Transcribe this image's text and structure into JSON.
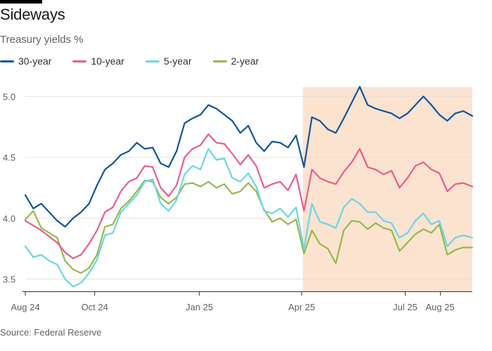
{
  "title": "Sideways",
  "subtitle": "Treasury yields %",
  "source": "Source: Federal Reserve",
  "colors": {
    "30-year": "#0f5499",
    "10-year": "#e95d8c",
    "5-year": "#6ad6e2",
    "2-year": "#96b84a",
    "shade": "#fbe3d0",
    "grid": "#e6e0da",
    "axis": "#33302e"
  },
  "chart_data": {
    "type": "line",
    "title": "Sideways",
    "subtitle": "Treasury yields %",
    "x_range": [
      "2024-08-01",
      "2025-08-29"
    ],
    "ylim": [
      3.4,
      5.1
    ],
    "y_ticks": [
      3.5,
      4.0,
      4.5,
      5.0
    ],
    "y_tick_labels": [
      "3.5",
      "4.0",
      "4.5",
      "5.0"
    ],
    "x_ticks": [
      {
        "date": "2024-08-01",
        "label": "Aug 24"
      },
      {
        "date": "2024-10-01",
        "label": "Oct 24"
      },
      {
        "date": "2025-01-01",
        "label": "Jan 25"
      },
      {
        "date": "2025-04-01",
        "label": "Apr 25"
      },
      {
        "date": "2025-07-01",
        "label": "Jul 25"
      },
      {
        "date": "2025-08-01",
        "label": "Aug 25"
      }
    ],
    "shaded_period": [
      "2025-04-02",
      "2025-08-29"
    ],
    "grid": "horizontal",
    "legend_position": "top-left",
    "series": [
      {
        "name": "30-year",
        "color": "#0f5499",
        "points": [
          [
            "2024-08-01",
            4.19
          ],
          [
            "2024-08-08",
            4.08
          ],
          [
            "2024-08-15",
            4.12
          ],
          [
            "2024-08-22",
            4.05
          ],
          [
            "2024-08-29",
            3.98
          ],
          [
            "2024-09-05",
            3.93
          ],
          [
            "2024-09-12",
            4.0
          ],
          [
            "2024-09-19",
            4.05
          ],
          [
            "2024-09-26",
            4.12
          ],
          [
            "2024-10-03",
            4.27
          ],
          [
            "2024-10-10",
            4.4
          ],
          [
            "2024-10-17",
            4.45
          ],
          [
            "2024-10-24",
            4.52
          ],
          [
            "2024-10-31",
            4.55
          ],
          [
            "2024-11-07",
            4.62
          ],
          [
            "2024-11-14",
            4.57
          ],
          [
            "2024-11-21",
            4.58
          ],
          [
            "2024-11-28",
            4.45
          ],
          [
            "2024-12-05",
            4.42
          ],
          [
            "2024-12-12",
            4.55
          ],
          [
            "2024-12-19",
            4.78
          ],
          [
            "2024-12-26",
            4.82
          ],
          [
            "2025-01-02",
            4.85
          ],
          [
            "2025-01-09",
            4.93
          ],
          [
            "2025-01-16",
            4.9
          ],
          [
            "2025-01-23",
            4.85
          ],
          [
            "2025-01-30",
            4.8
          ],
          [
            "2025-02-06",
            4.7
          ],
          [
            "2025-02-13",
            4.76
          ],
          [
            "2025-02-20",
            4.62
          ],
          [
            "2025-02-27",
            4.55
          ],
          [
            "2025-03-06",
            4.63
          ],
          [
            "2025-03-13",
            4.62
          ],
          [
            "2025-03-20",
            4.58
          ],
          [
            "2025-03-27",
            4.68
          ],
          [
            "2025-04-03",
            4.42
          ],
          [
            "2025-04-10",
            4.83
          ],
          [
            "2025-04-17",
            4.8
          ],
          [
            "2025-04-24",
            4.73
          ],
          [
            "2025-05-01",
            4.7
          ],
          [
            "2025-05-08",
            4.82
          ],
          [
            "2025-05-15",
            4.95
          ],
          [
            "2025-05-22",
            5.08
          ],
          [
            "2025-05-29",
            4.93
          ],
          [
            "2025-06-05",
            4.9
          ],
          [
            "2025-06-12",
            4.88
          ],
          [
            "2025-06-19",
            4.86
          ],
          [
            "2025-06-26",
            4.82
          ],
          [
            "2025-07-03",
            4.86
          ],
          [
            "2025-07-10",
            4.93
          ],
          [
            "2025-07-17",
            5.0
          ],
          [
            "2025-07-24",
            4.93
          ],
          [
            "2025-07-31",
            4.85
          ],
          [
            "2025-08-07",
            4.8
          ],
          [
            "2025-08-14",
            4.86
          ],
          [
            "2025-08-21",
            4.88
          ],
          [
            "2025-08-29",
            4.84
          ]
        ]
      },
      {
        "name": "10-year",
        "color": "#e95d8c",
        "points": [
          [
            "2024-08-01",
            3.98
          ],
          [
            "2024-08-08",
            3.94
          ],
          [
            "2024-08-15",
            3.9
          ],
          [
            "2024-08-22",
            3.85
          ],
          [
            "2024-08-29",
            3.8
          ],
          [
            "2024-09-05",
            3.72
          ],
          [
            "2024-09-12",
            3.67
          ],
          [
            "2024-09-19",
            3.7
          ],
          [
            "2024-09-26",
            3.79
          ],
          [
            "2024-10-03",
            3.9
          ],
          [
            "2024-10-10",
            4.05
          ],
          [
            "2024-10-17",
            4.09
          ],
          [
            "2024-10-24",
            4.22
          ],
          [
            "2024-10-31",
            4.3
          ],
          [
            "2024-11-07",
            4.33
          ],
          [
            "2024-11-14",
            4.43
          ],
          [
            "2024-11-21",
            4.42
          ],
          [
            "2024-11-28",
            4.25
          ],
          [
            "2024-12-05",
            4.18
          ],
          [
            "2024-12-12",
            4.27
          ],
          [
            "2024-12-19",
            4.5
          ],
          [
            "2024-12-26",
            4.57
          ],
          [
            "2025-01-02",
            4.6
          ],
          [
            "2025-01-09",
            4.69
          ],
          [
            "2025-01-16",
            4.62
          ],
          [
            "2025-01-23",
            4.61
          ],
          [
            "2025-01-30",
            4.53
          ],
          [
            "2025-02-06",
            4.44
          ],
          [
            "2025-02-13",
            4.52
          ],
          [
            "2025-02-20",
            4.43
          ],
          [
            "2025-02-27",
            4.25
          ],
          [
            "2025-03-06",
            4.28
          ],
          [
            "2025-03-13",
            4.3
          ],
          [
            "2025-03-20",
            4.23
          ],
          [
            "2025-03-27",
            4.36
          ],
          [
            "2025-04-03",
            4.06
          ],
          [
            "2025-04-10",
            4.4
          ],
          [
            "2025-04-17",
            4.33
          ],
          [
            "2025-04-24",
            4.3
          ],
          [
            "2025-05-01",
            4.28
          ],
          [
            "2025-05-08",
            4.38
          ],
          [
            "2025-05-15",
            4.46
          ],
          [
            "2025-05-22",
            4.57
          ],
          [
            "2025-05-29",
            4.42
          ],
          [
            "2025-06-05",
            4.4
          ],
          [
            "2025-06-12",
            4.36
          ],
          [
            "2025-06-19",
            4.39
          ],
          [
            "2025-06-26",
            4.25
          ],
          [
            "2025-07-03",
            4.33
          ],
          [
            "2025-07-10",
            4.43
          ],
          [
            "2025-07-17",
            4.46
          ],
          [
            "2025-07-24",
            4.4
          ],
          [
            "2025-07-31",
            4.37
          ],
          [
            "2025-08-07",
            4.22
          ],
          [
            "2025-08-14",
            4.28
          ],
          [
            "2025-08-21",
            4.29
          ],
          [
            "2025-08-29",
            4.26
          ]
        ]
      },
      {
        "name": "5-year",
        "color": "#6ad6e2",
        "points": [
          [
            "2024-08-01",
            3.77
          ],
          [
            "2024-08-08",
            3.68
          ],
          [
            "2024-08-15",
            3.7
          ],
          [
            "2024-08-22",
            3.65
          ],
          [
            "2024-08-29",
            3.62
          ],
          [
            "2024-09-05",
            3.5
          ],
          [
            "2024-09-12",
            3.44
          ],
          [
            "2024-09-19",
            3.47
          ],
          [
            "2024-09-26",
            3.55
          ],
          [
            "2024-10-03",
            3.66
          ],
          [
            "2024-10-10",
            3.86
          ],
          [
            "2024-10-17",
            3.88
          ],
          [
            "2024-10-24",
            4.05
          ],
          [
            "2024-10-31",
            4.12
          ],
          [
            "2024-11-07",
            4.19
          ],
          [
            "2024-11-14",
            4.3
          ],
          [
            "2024-11-21",
            4.32
          ],
          [
            "2024-11-28",
            4.12
          ],
          [
            "2024-12-05",
            4.06
          ],
          [
            "2024-12-12",
            4.15
          ],
          [
            "2024-12-19",
            4.36
          ],
          [
            "2024-12-26",
            4.43
          ],
          [
            "2025-01-02",
            4.4
          ],
          [
            "2025-01-09",
            4.57
          ],
          [
            "2025-01-16",
            4.48
          ],
          [
            "2025-01-23",
            4.49
          ],
          [
            "2025-01-30",
            4.33
          ],
          [
            "2025-02-06",
            4.3
          ],
          [
            "2025-02-13",
            4.37
          ],
          [
            "2025-02-20",
            4.26
          ],
          [
            "2025-02-27",
            4.06
          ],
          [
            "2025-03-06",
            4.04
          ],
          [
            "2025-03-13",
            4.08
          ],
          [
            "2025-03-20",
            4.01
          ],
          [
            "2025-03-27",
            4.09
          ],
          [
            "2025-04-03",
            3.75
          ],
          [
            "2025-04-10",
            4.12
          ],
          [
            "2025-04-17",
            3.97
          ],
          [
            "2025-04-24",
            3.95
          ],
          [
            "2025-05-01",
            3.92
          ],
          [
            "2025-05-08",
            4.09
          ],
          [
            "2025-05-15",
            4.16
          ],
          [
            "2025-05-22",
            4.12
          ],
          [
            "2025-05-29",
            4.05
          ],
          [
            "2025-06-05",
            4.05
          ],
          [
            "2025-06-12",
            3.98
          ],
          [
            "2025-06-19",
            3.96
          ],
          [
            "2025-06-26",
            3.84
          ],
          [
            "2025-07-03",
            3.88
          ],
          [
            "2025-07-10",
            3.98
          ],
          [
            "2025-07-17",
            4.04
          ],
          [
            "2025-07-24",
            3.95
          ],
          [
            "2025-07-31",
            3.98
          ],
          [
            "2025-08-07",
            3.77
          ],
          [
            "2025-08-14",
            3.84
          ],
          [
            "2025-08-21",
            3.86
          ],
          [
            "2025-08-29",
            3.84
          ]
        ]
      },
      {
        "name": "2-year",
        "color": "#96b84a",
        "points": [
          [
            "2024-08-01",
            3.99
          ],
          [
            "2024-08-08",
            4.06
          ],
          [
            "2024-08-15",
            3.92
          ],
          [
            "2024-08-22",
            3.88
          ],
          [
            "2024-08-29",
            3.84
          ],
          [
            "2024-09-05",
            3.65
          ],
          [
            "2024-09-12",
            3.58
          ],
          [
            "2024-09-19",
            3.55
          ],
          [
            "2024-09-26",
            3.59
          ],
          [
            "2024-10-03",
            3.7
          ],
          [
            "2024-10-10",
            3.93
          ],
          [
            "2024-10-17",
            3.95
          ],
          [
            "2024-10-24",
            4.08
          ],
          [
            "2024-10-31",
            4.14
          ],
          [
            "2024-11-07",
            4.22
          ],
          [
            "2024-11-14",
            4.31
          ],
          [
            "2024-11-21",
            4.3
          ],
          [
            "2024-11-28",
            4.17
          ],
          [
            "2024-12-05",
            4.12
          ],
          [
            "2024-12-12",
            4.17
          ],
          [
            "2024-12-19",
            4.28
          ],
          [
            "2024-12-26",
            4.29
          ],
          [
            "2025-01-02",
            4.26
          ],
          [
            "2025-01-09",
            4.3
          ],
          [
            "2025-01-16",
            4.25
          ],
          [
            "2025-01-23",
            4.28
          ],
          [
            "2025-01-30",
            4.2
          ],
          [
            "2025-02-06",
            4.22
          ],
          [
            "2025-02-13",
            4.29
          ],
          [
            "2025-02-20",
            4.22
          ],
          [
            "2025-02-27",
            4.07
          ],
          [
            "2025-03-06",
            3.97
          ],
          [
            "2025-03-13",
            4.0
          ],
          [
            "2025-03-20",
            3.95
          ],
          [
            "2025-03-27",
            3.99
          ],
          [
            "2025-04-03",
            3.71
          ],
          [
            "2025-04-10",
            3.9
          ],
          [
            "2025-04-17",
            3.79
          ],
          [
            "2025-04-24",
            3.75
          ],
          [
            "2025-05-01",
            3.63
          ],
          [
            "2025-05-08",
            3.9
          ],
          [
            "2025-05-15",
            3.98
          ],
          [
            "2025-05-22",
            3.97
          ],
          [
            "2025-05-29",
            3.91
          ],
          [
            "2025-06-05",
            3.96
          ],
          [
            "2025-06-12",
            3.92
          ],
          [
            "2025-06-19",
            3.9
          ],
          [
            "2025-06-26",
            3.73
          ],
          [
            "2025-07-03",
            3.8
          ],
          [
            "2025-07-10",
            3.87
          ],
          [
            "2025-07-17",
            3.91
          ],
          [
            "2025-07-24",
            3.88
          ],
          [
            "2025-07-31",
            3.95
          ],
          [
            "2025-08-07",
            3.7
          ],
          [
            "2025-08-14",
            3.74
          ],
          [
            "2025-08-21",
            3.76
          ],
          [
            "2025-08-29",
            3.76
          ]
        ]
      }
    ]
  }
}
